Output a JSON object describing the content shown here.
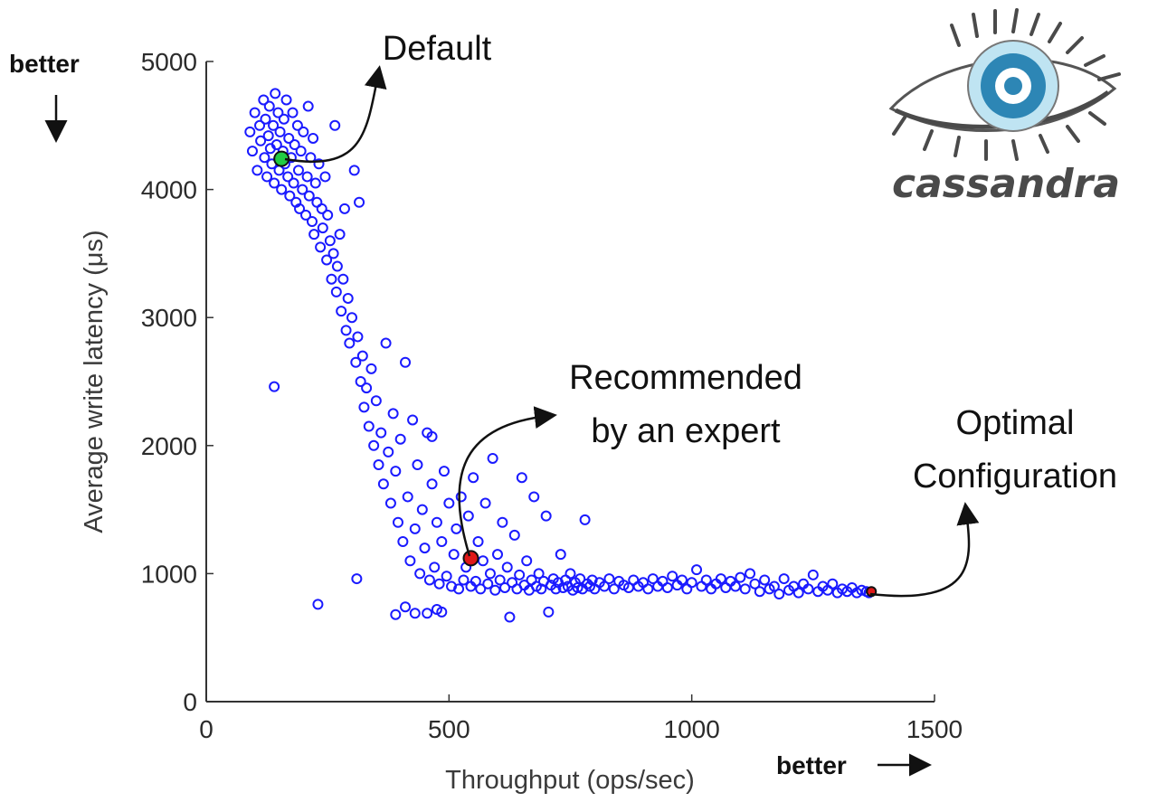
{
  "chart_data": {
    "type": "scatter",
    "title": "",
    "xlabel": "Throughput (ops/sec)",
    "ylabel": "Average write latency (μs)",
    "xlim": [
      0,
      1500
    ],
    "ylim": [
      0,
      5000
    ],
    "xticks": [
      0,
      500,
      1000,
      1500
    ],
    "yticks": [
      0,
      1000,
      2000,
      3000,
      4000,
      5000
    ],
    "grid": false,
    "marker_color": "#1a1aff",
    "highlight_points": [
      {
        "name": "Default",
        "x": 155,
        "y": 4240,
        "color": "#22cc44"
      },
      {
        "name": "Recommended by an expert",
        "x": 545,
        "y": 1120,
        "color": "#e01818"
      },
      {
        "name": "Optimal Configuration",
        "x": 1370,
        "y": 860,
        "color": "#e01818"
      }
    ],
    "points": [
      [
        90,
        4450
      ],
      [
        95,
        4300
      ],
      [
        100,
        4600
      ],
      [
        105,
        4150
      ],
      [
        110,
        4500
      ],
      [
        112,
        4380
      ],
      [
        118,
        4700
      ],
      [
        120,
        4250
      ],
      [
        122,
        4550
      ],
      [
        125,
        4100
      ],
      [
        128,
        4420
      ],
      [
        130,
        4650
      ],
      [
        132,
        4320
      ],
      [
        135,
        4200
      ],
      [
        138,
        4500
      ],
      [
        140,
        4050
      ],
      [
        142,
        4750
      ],
      [
        145,
        4350
      ],
      [
        148,
        4600
      ],
      [
        150,
        4150
      ],
      [
        152,
        4450
      ],
      [
        155,
        4000
      ],
      [
        158,
        4300
      ],
      [
        160,
        4550
      ],
      [
        162,
        4200
      ],
      [
        165,
        4700
      ],
      [
        168,
        4100
      ],
      [
        170,
        4400
      ],
      [
        172,
        3950
      ],
      [
        175,
        4250
      ],
      [
        178,
        4600
      ],
      [
        180,
        4050
      ],
      [
        182,
        4350
      ],
      [
        185,
        3900
      ],
      [
        188,
        4500
      ],
      [
        190,
        4150
      ],
      [
        192,
        3850
      ],
      [
        195,
        4300
      ],
      [
        198,
        4000
      ],
      [
        200,
        4450
      ],
      [
        205,
        3800
      ],
      [
        208,
        4100
      ],
      [
        210,
        4650
      ],
      [
        212,
        3950
      ],
      [
        215,
        4250
      ],
      [
        218,
        3750
      ],
      [
        220,
        4400
      ],
      [
        222,
        3650
      ],
      [
        225,
        4050
      ],
      [
        228,
        3900
      ],
      [
        232,
        4200
      ],
      [
        235,
        3550
      ],
      [
        238,
        3850
      ],
      [
        240,
        3700
      ],
      [
        245,
        4100
      ],
      [
        248,
        3450
      ],
      [
        250,
        3800
      ],
      [
        255,
        3600
      ],
      [
        258,
        3300
      ],
      [
        262,
        3500
      ],
      [
        265,
        4500
      ],
      [
        268,
        3200
      ],
      [
        270,
        3400
      ],
      [
        275,
        3650
      ],
      [
        278,
        3050
      ],
      [
        282,
        3300
      ],
      [
        285,
        3850
      ],
      [
        288,
        2900
      ],
      [
        292,
        3150
      ],
      [
        295,
        2800
      ],
      [
        300,
        3000
      ],
      [
        305,
        4150
      ],
      [
        308,
        2650
      ],
      [
        312,
        2850
      ],
      [
        315,
        3900
      ],
      [
        318,
        2500
      ],
      [
        322,
        2700
      ],
      [
        325,
        2300
      ],
      [
        330,
        2450
      ],
      [
        335,
        2150
      ],
      [
        340,
        2600
      ],
      [
        345,
        2000
      ],
      [
        350,
        2350
      ],
      [
        355,
        1850
      ],
      [
        360,
        2100
      ],
      [
        365,
        1700
      ],
      [
        370,
        2800
      ],
      [
        375,
        1950
      ],
      [
        380,
        1550
      ],
      [
        385,
        2250
      ],
      [
        390,
        1800
      ],
      [
        395,
        1400
      ],
      [
        400,
        2050
      ],
      [
        405,
        1250
      ],
      [
        410,
        2650
      ],
      [
        415,
        1600
      ],
      [
        420,
        1100
      ],
      [
        425,
        2200
      ],
      [
        430,
        1350
      ],
      [
        435,
        1850
      ],
      [
        440,
        1000
      ],
      [
        445,
        1500
      ],
      [
        450,
        1200
      ],
      [
        455,
        2100
      ],
      [
        460,
        950
      ],
      [
        465,
        1700
      ],
      [
        470,
        1050
      ],
      [
        475,
        1400
      ],
      [
        480,
        920
      ],
      [
        485,
        1250
      ],
      [
        490,
        1800
      ],
      [
        495,
        980
      ],
      [
        500,
        1550
      ],
      [
        505,
        900
      ],
      [
        510,
        1150
      ],
      [
        515,
        1350
      ],
      [
        520,
        880
      ],
      [
        525,
        1600
      ],
      [
        530,
        950
      ],
      [
        535,
        1050
      ],
      [
        540,
        1450
      ],
      [
        545,
        900
      ],
      [
        550,
        1750
      ],
      [
        555,
        940
      ],
      [
        560,
        1250
      ],
      [
        565,
        880
      ],
      [
        570,
        1100
      ],
      [
        575,
        1550
      ],
      [
        580,
        920
      ],
      [
        585,
        1000
      ],
      [
        590,
        1900
      ],
      [
        595,
        870
      ],
      [
        600,
        1150
      ],
      [
        605,
        950
      ],
      [
        610,
        1400
      ],
      [
        615,
        890
      ],
      [
        620,
        1050
      ],
      [
        625,
        660
      ],
      [
        630,
        930
      ],
      [
        635,
        1300
      ],
      [
        640,
        880
      ],
      [
        645,
        990
      ],
      [
        650,
        1750
      ],
      [
        655,
        910
      ],
      [
        660,
        1100
      ],
      [
        665,
        870
      ],
      [
        670,
        950
      ],
      [
        675,
        1600
      ],
      [
        680,
        900
      ],
      [
        685,
        1000
      ],
      [
        690,
        880
      ],
      [
        695,
        940
      ],
      [
        700,
        1450
      ],
      [
        705,
        700
      ],
      [
        710,
        910
      ],
      [
        715,
        960
      ],
      [
        720,
        880
      ],
      [
        725,
        930
      ],
      [
        730,
        1150
      ],
      [
        735,
        890
      ],
      [
        740,
        950
      ],
      [
        745,
        900
      ],
      [
        750,
        1000
      ],
      [
        755,
        870
      ],
      [
        760,
        930
      ],
      [
        765,
        890
      ],
      [
        770,
        960
      ],
      [
        775,
        880
      ],
      [
        780,
        1420
      ],
      [
        785,
        920
      ],
      [
        790,
        900
      ],
      [
        795,
        950
      ],
      [
        800,
        880
      ],
      [
        810,
        930
      ],
      [
        820,
        900
      ],
      [
        830,
        960
      ],
      [
        840,
        880
      ],
      [
        850,
        940
      ],
      [
        860,
        910
      ],
      [
        870,
        890
      ],
      [
        880,
        950
      ],
      [
        890,
        900
      ],
      [
        900,
        930
      ],
      [
        910,
        880
      ],
      [
        920,
        960
      ],
      [
        930,
        900
      ],
      [
        940,
        940
      ],
      [
        950,
        890
      ],
      [
        960,
        980
      ],
      [
        970,
        910
      ],
      [
        980,
        950
      ],
      [
        990,
        880
      ],
      [
        1000,
        930
      ],
      [
        1010,
        1030
      ],
      [
        1020,
        900
      ],
      [
        1030,
        950
      ],
      [
        1040,
        880
      ],
      [
        1050,
        920
      ],
      [
        1060,
        960
      ],
      [
        1070,
        890
      ],
      [
        1080,
        940
      ],
      [
        1090,
        900
      ],
      [
        1100,
        970
      ],
      [
        1110,
        880
      ],
      [
        1120,
        1000
      ],
      [
        1130,
        920
      ],
      [
        1140,
        860
      ],
      [
        1150,
        950
      ],
      [
        1160,
        880
      ],
      [
        1170,
        900
      ],
      [
        1180,
        840
      ],
      [
        1190,
        960
      ],
      [
        1200,
        870
      ],
      [
        1210,
        900
      ],
      [
        1220,
        850
      ],
      [
        1230,
        920
      ],
      [
        1240,
        880
      ],
      [
        1250,
        990
      ],
      [
        1260,
        860
      ],
      [
        1270,
        900
      ],
      [
        1280,
        870
      ],
      [
        1290,
        920
      ],
      [
        1300,
        850
      ],
      [
        1310,
        880
      ],
      [
        1320,
        860
      ],
      [
        1330,
        890
      ],
      [
        1340,
        850
      ],
      [
        1350,
        870
      ],
      [
        1360,
        860
      ],
      [
        1365,
        850
      ],
      [
        230,
        760
      ],
      [
        455,
        690
      ],
      [
        475,
        720
      ],
      [
        390,
        680
      ],
      [
        410,
        740
      ],
      [
        140,
        2460
      ],
      [
        465,
        2070
      ],
      [
        430,
        690
      ],
      [
        485,
        700
      ],
      [
        310,
        960
      ]
    ]
  },
  "annotations": {
    "default_label": "Default",
    "recommended_line1": "Recommended",
    "recommended_line2": "by an expert",
    "optimal_line1": "Optimal",
    "optimal_line2": "Configuration",
    "better_y": "better",
    "better_x": "better",
    "logo_text": "cassandra"
  }
}
